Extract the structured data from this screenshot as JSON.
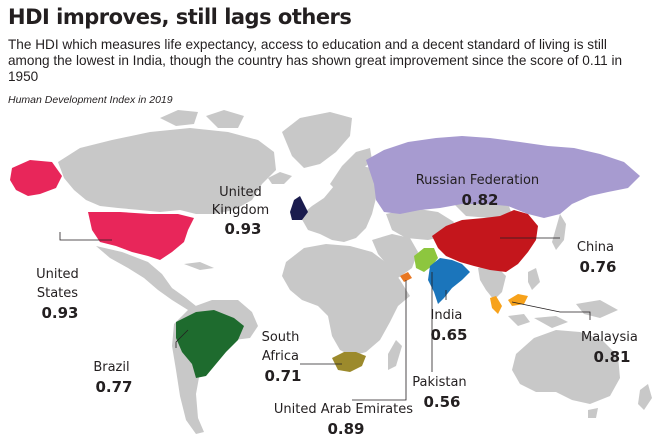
{
  "header": {
    "title": "HDI improves, still lags others",
    "subtitle": "The HDI which measures life expectancy, access to education and a decent standard of living is still among the lowest in India, though the country has shown great improvement since the score of 0.11 in 1950",
    "caption": "Human Development Index in 2019"
  },
  "map": {
    "base_color": "#c8c8c8",
    "countries": [
      {
        "id": "united-states",
        "name_lines": [
          "United",
          "States"
        ],
        "value": "0.93",
        "color": "#e8265a"
      },
      {
        "id": "united-kingdom",
        "name_lines": [
          "United",
          "Kingdom"
        ],
        "value": "0.93",
        "color": "#1b1c4e"
      },
      {
        "id": "russian-federation",
        "name_lines": [
          "Russian Federation"
        ],
        "value": "0.82",
        "color": "#a79bd0"
      },
      {
        "id": "china",
        "name_lines": [
          "China"
        ],
        "value": "0.76",
        "color": "#c4161c"
      },
      {
        "id": "india",
        "name_lines": [
          "India"
        ],
        "value": "0.65",
        "color": "#1b75bb"
      },
      {
        "id": "malaysia",
        "name_lines": [
          "Malaysia"
        ],
        "value": "0.81",
        "color": "#f7a21b"
      },
      {
        "id": "pakistan",
        "name_lines": [
          "Pakistan"
        ],
        "value": "0.56",
        "color": "#8dc63f"
      },
      {
        "id": "united-arab-emirates",
        "name_lines": [
          "United Arab Emirates"
        ],
        "value": "0.89",
        "color": "#e87722"
      },
      {
        "id": "south-africa",
        "name_lines": [
          "South",
          "Africa"
        ],
        "value": "0.71",
        "color": "#9c8a2c"
      },
      {
        "id": "brazil",
        "name_lines": [
          "Brazil"
        ],
        "value": "0.77",
        "color": "#1e6b2e"
      }
    ]
  }
}
